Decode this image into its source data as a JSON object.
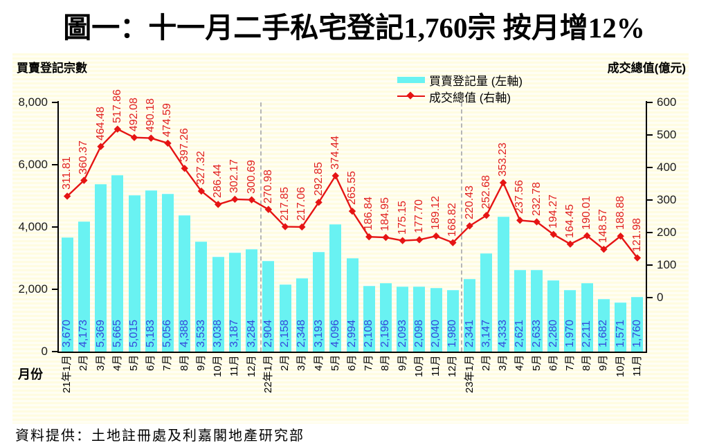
{
  "title": "圖一：十一月二手私宅登記1,760宗  按月增12%",
  "source": "資料提供：土地註冊處及利嘉閣地產研究部",
  "chart": {
    "left_axis_title": "買賣登記宗數",
    "right_axis_title": "成交總值(億元)",
    "x_axis_title": "月份",
    "legend": [
      {
        "label": "買賣登記量 (左軸)",
        "type": "bar"
      },
      {
        "label": "成交總值 (右軸)",
        "type": "line"
      }
    ]
  },
  "chart_data": {
    "type": "combo-bar-line",
    "categories": [
      "21年1月",
      "2月",
      "3月",
      "4月",
      "5月",
      "6月",
      "7月",
      "8月",
      "9月",
      "10月",
      "11月",
      "12月",
      "22年1月",
      "2月",
      "3月",
      "4月",
      "5月",
      "6月",
      "7月",
      "8月",
      "9月",
      "10月",
      "11月",
      "12月",
      "23年1月",
      "2月",
      "3月",
      "4月",
      "5月",
      "6月",
      "7月",
      "8月",
      "9月",
      "10月",
      "11月"
    ],
    "series": [
      {
        "name": "買賣登記量 (左軸)",
        "type": "bar",
        "axis": "left",
        "values": [
          3670,
          4173,
          5369,
          5665,
          5015,
          5183,
          5056,
          4388,
          3533,
          3038,
          3187,
          3284,
          2904,
          2158,
          2348,
          3193,
          4096,
          2994,
          2108,
          2196,
          2093,
          2098,
          2040,
          1980,
          2341,
          3147,
          4333,
          2621,
          2633,
          2280,
          1970,
          2211,
          1682,
          1571,
          1760
        ]
      },
      {
        "name": "成交總值 (右軸)",
        "type": "line",
        "axis": "right",
        "values": [
          "311.81",
          "360.37",
          "464.48",
          "517.86",
          "492.08",
          "490.18",
          "474.59",
          "397.26",
          "327.32",
          "286.44",
          "302.17",
          "300.69",
          "270.98",
          "217.85",
          "217.06",
          "292.85",
          "374.44",
          "265.55",
          "186.84",
          "184.95",
          "175.15",
          "177.70",
          "189.12",
          "168.82",
          "220.43",
          "252.68",
          "353.23",
          "237.56",
          "232.78",
          "194.27",
          "164.45",
          "190.01",
          "148.57",
          "188.88",
          "121.98"
        ]
      }
    ],
    "left_axis": {
      "min": 0,
      "max": 8000,
      "ticks": [
        "8,000",
        "6,000",
        "4,000",
        "2,000",
        "0"
      ]
    },
    "right_axis": {
      "min": 0,
      "max": 600,
      "ticks": [
        "600",
        "500",
        "400",
        "300",
        "200",
        "100",
        "0"
      ]
    },
    "year_separators_after_index": [
      11,
      23
    ],
    "legend_position": "top-right-inside",
    "grid": "off",
    "colors": {
      "bar": "#69f2f2",
      "line": "#e51414",
      "bar_label": "#3348db",
      "line_label": "#e02020",
      "separator": "#b5b5b5",
      "panel_stripe": "#fffce1"
    }
  }
}
